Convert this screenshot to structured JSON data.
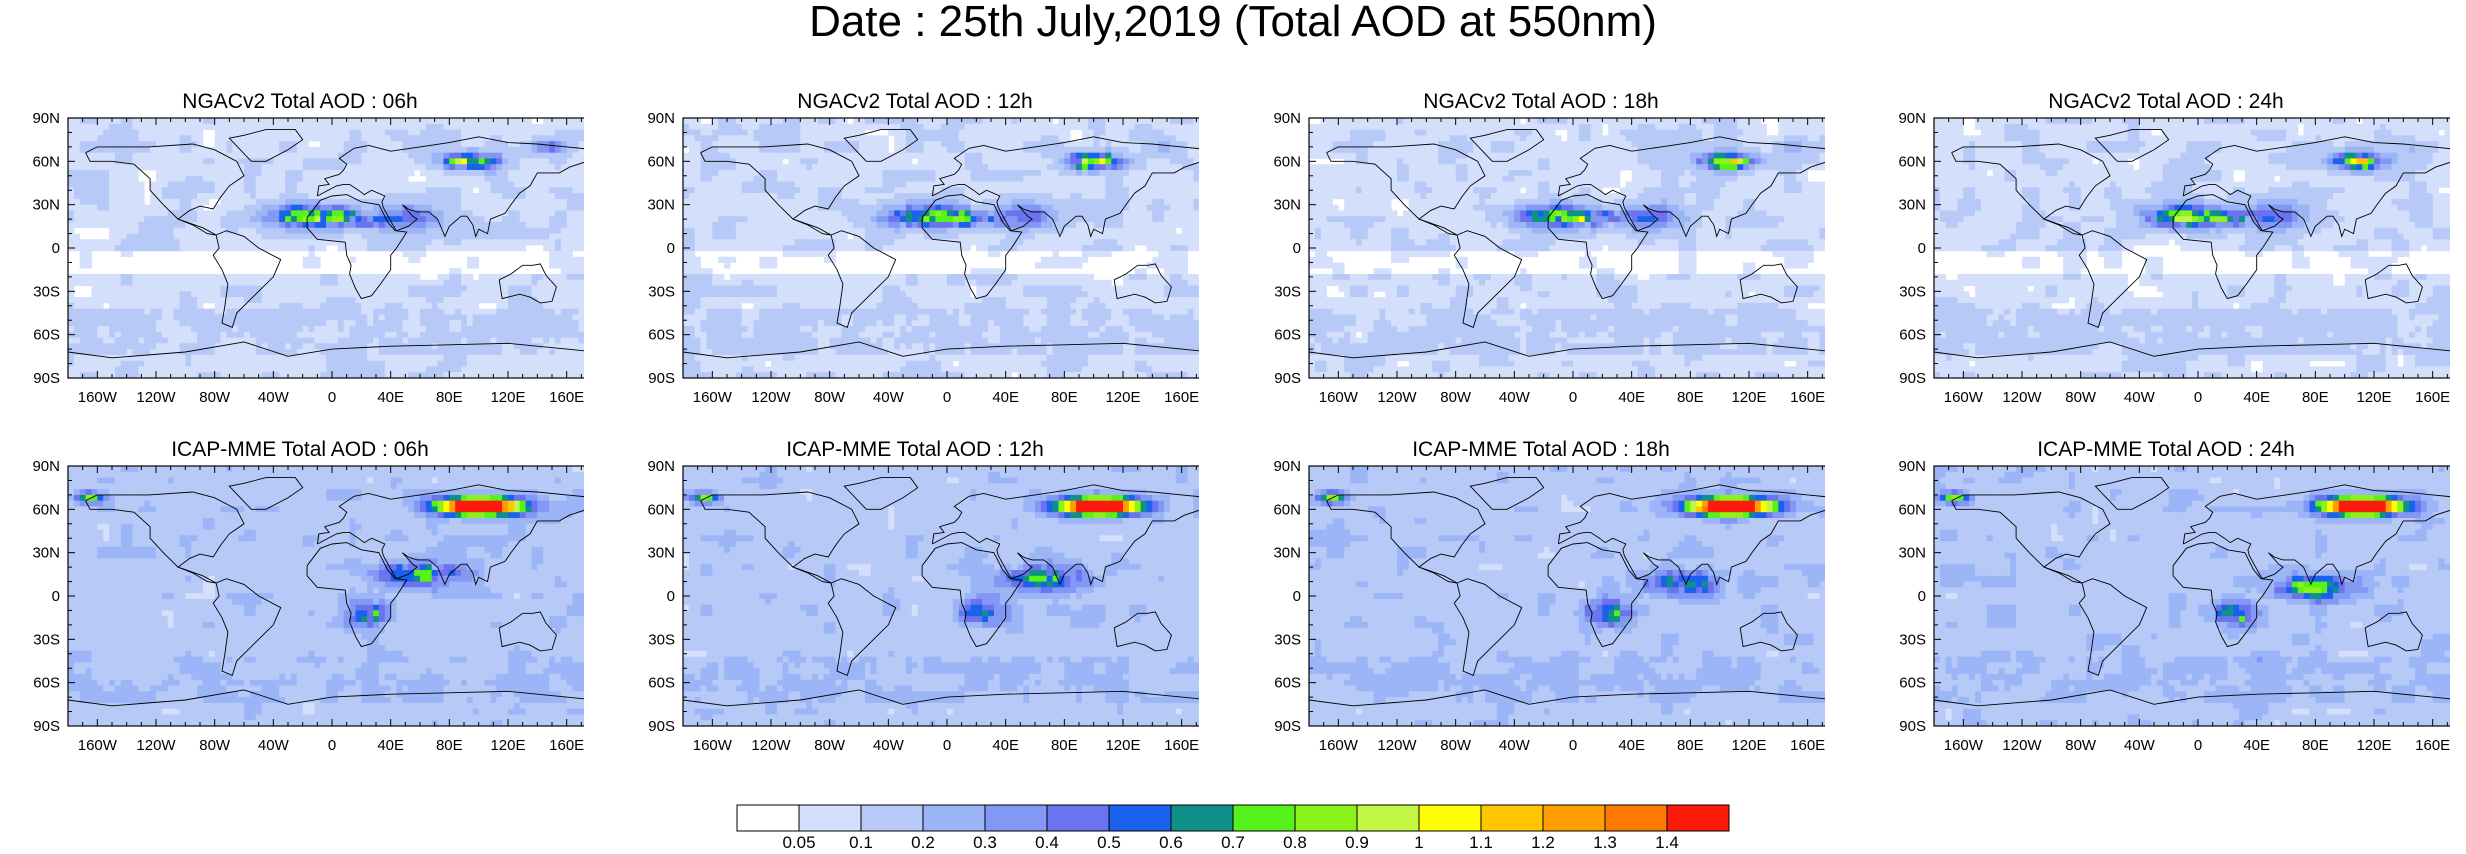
{
  "title": "Date : 25th July,2019 (Total AOD at 550nm)",
  "panels": [
    {
      "title": "NGACv2 Total AOD : 06h",
      "model": "ngac",
      "variant": 0
    },
    {
      "title": "NGACv2 Total AOD : 12h",
      "model": "ngac",
      "variant": 1
    },
    {
      "title": "NGACv2 Total AOD : 18h",
      "model": "ngac",
      "variant": 2
    },
    {
      "title": "NGACv2 Total AOD : 24h",
      "model": "ngac",
      "variant": 3
    },
    {
      "title": "ICAP-MME Total AOD : 06h",
      "model": "icap",
      "variant": 0
    },
    {
      "title": "ICAP-MME Total AOD : 12h",
      "model": "icap",
      "variant": 1
    },
    {
      "title": "ICAP-MME Total AOD : 18h",
      "model": "icap",
      "variant": 2
    },
    {
      "title": "ICAP-MME Total AOD : 24h",
      "model": "icap",
      "variant": 3
    }
  ],
  "lat_labels": [
    "90N",
    "60N",
    "30N",
    "0",
    "30S",
    "60S",
    "90S"
  ],
  "lon_labels": [
    "160W",
    "120W",
    "80W",
    "40W",
    "0",
    "40E",
    "80E",
    "120E",
    "160E"
  ],
  "colorbar": {
    "labels": [
      "0.05",
      "0.1",
      "0.2",
      "0.3",
      "0.4",
      "0.5",
      "0.6",
      "0.7",
      "0.8",
      "0.9",
      "1",
      "1.1",
      "1.2",
      "1.3",
      "1.4"
    ],
    "colors": [
      "#ffffff",
      "#d4e0fb",
      "#b6c9f7",
      "#9bb5f7",
      "#8398f4",
      "#6b74ee",
      "#1a62ee",
      "#0f9089",
      "#55f21b",
      "#8bf21b",
      "#c3f545",
      "#ffff00",
      "#ffc600",
      "#ff9e00",
      "#ff7a00",
      "#fe1a0a"
    ]
  }
}
